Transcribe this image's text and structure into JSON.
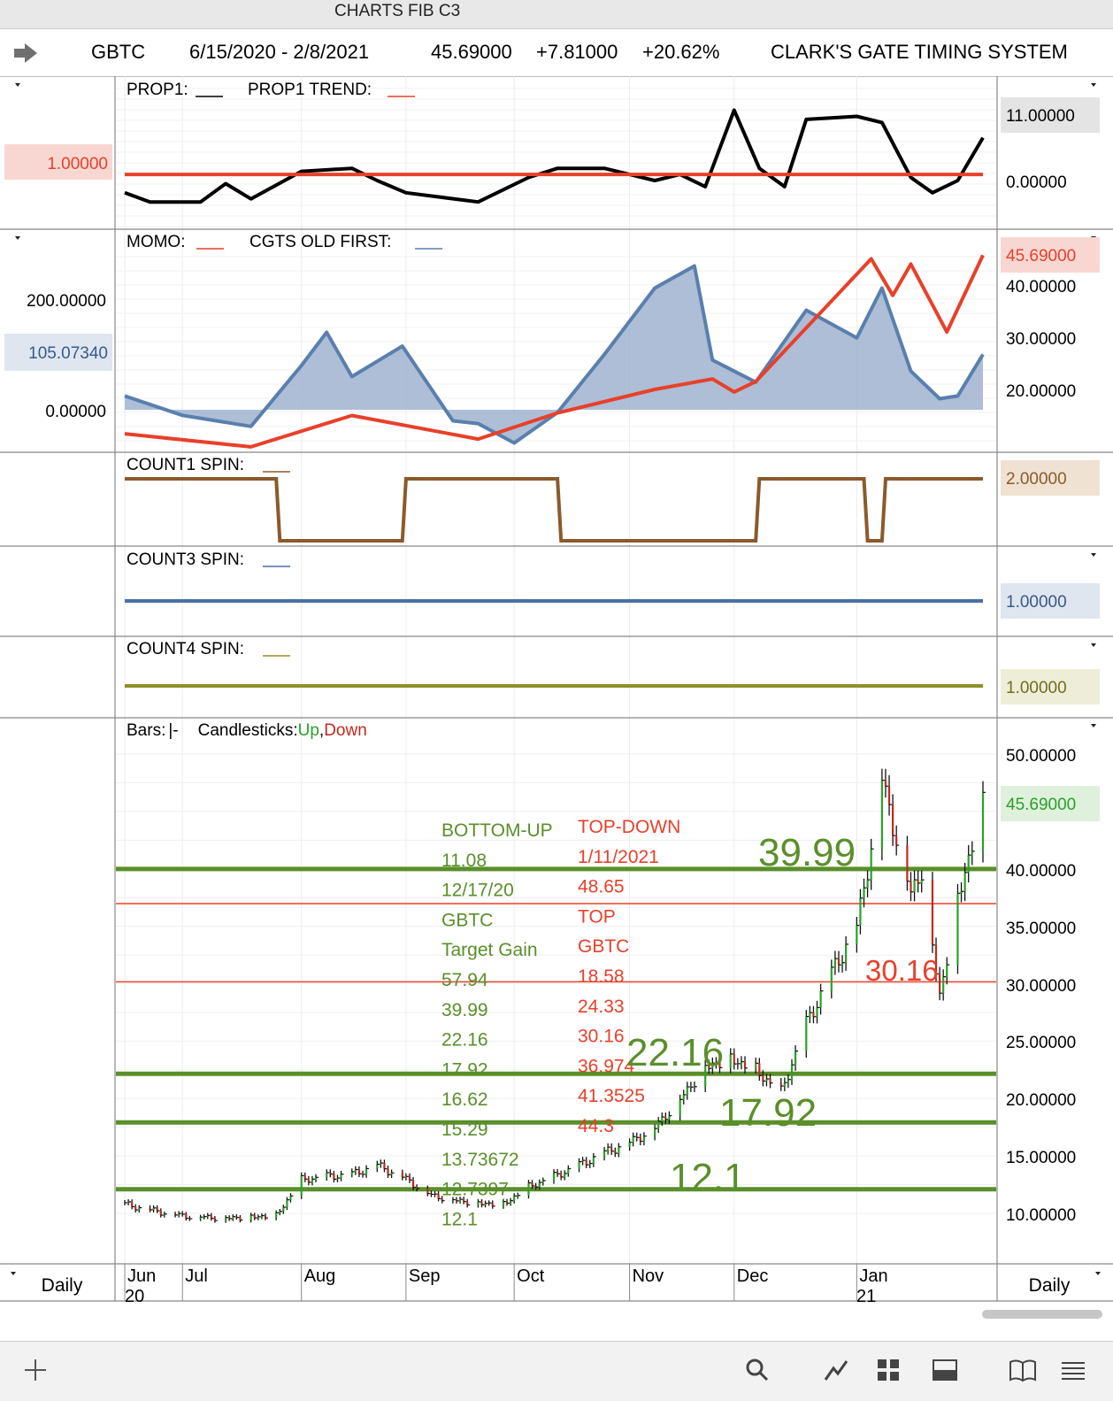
{
  "window": {
    "title": "CHARTS FIB C3"
  },
  "header": {
    "symbol": "GBTC",
    "date_range": "6/15/2020 - 2/8/2021",
    "last_price": "45.69000",
    "change": "+7.81000",
    "change_pct": "+20.62%",
    "system": "CLARK'S GATE TIMING SYSTEM"
  },
  "panels": {
    "prop": {
      "legend1": "PROP1:",
      "legend2": "PROP1 TREND:",
      "left_value": "1.00000",
      "right_ticks": [
        "11.00000",
        "0.00000"
      ]
    },
    "momo": {
      "legend1": "MOMO:",
      "legend2": "CGTS OLD FIRST:",
      "left_ticks": [
        "200.00000",
        "0.00000"
      ],
      "left_value": "105.07340",
      "right_value": "45.69000",
      "right_ticks": [
        "40.00000",
        "30.00000",
        "20.00000"
      ]
    },
    "count1": {
      "legend": "COUNT1 SPIN:",
      "right_value": "2.00000"
    },
    "count3": {
      "legend": "COUNT3 SPIN:",
      "right_value": "1.00000"
    },
    "count4": {
      "legend": "COUNT4 SPIN:",
      "right_value": "1.00000"
    },
    "price": {
      "legend_bars": "Bars:",
      "legend_bars_sym": "|-",
      "legend_candles": "Candlesticks:",
      "legend_up": "Up",
      "legend_comma": ",",
      "legend_down": "Down",
      "right_value": "45.69000",
      "right_ticks": [
        "50.00000",
        "40.00000",
        "35.00000",
        "30.00000",
        "25.00000",
        "20.00000",
        "15.00000",
        "10.00000"
      ]
    }
  },
  "colors": {
    "prop1": "#000000",
    "trend": "#e8402a",
    "momo": "#e8402a",
    "cgts": "#5a7fae",
    "count1": "#8b5a2b",
    "count3": "#4a6fa5",
    "count4": "#8f8f2a",
    "fib_green": "#5a8f2a",
    "fib_red": "#e8402a",
    "up": "#2aa02a",
    "down": "#c0281e"
  },
  "fib": {
    "bottom_up": [
      "BOTTOM-UP",
      "11.08",
      "12/17/20",
      "GBTC",
      "Target Gain",
      "57.94",
      "39.99",
      "22.16",
      "17.92",
      "16.62",
      "15.29",
      "13.73672",
      "12.7397",
      "12.1"
    ],
    "top_down": [
      "TOP-DOWN",
      "1/11/2021",
      "48.65",
      "TOP",
      "GBTC",
      "18.58",
      "24.33",
      "30.16",
      "36.974",
      "41.3525",
      "44.3"
    ],
    "big_labels": [
      "39.99",
      "22.16",
      "17.92",
      "12.1",
      "30.16"
    ]
  },
  "x_axis": {
    "months": [
      "Jun",
      "Jul",
      "Aug",
      "Sep",
      "Oct",
      "Nov",
      "Dec",
      "Jan"
    ],
    "years": [
      "20",
      "21"
    ],
    "left_label": "Daily",
    "right_label": "Daily"
  },
  "chart_data": [
    {
      "type": "line",
      "title": "PROP1",
      "series": [
        {
          "name": "PROP1",
          "x": [
            "6/15/2020",
            "6/22/2020",
            "7/6/2020",
            "7/13/2020",
            "7/20/2020",
            "8/3/2020",
            "8/17/2020",
            "8/24/2020",
            "9/1/2020",
            "9/21/2020",
            "10/5/2020",
            "10/13/2020",
            "10/26/2020",
            "11/9/2020",
            "11/16/2020",
            "11/23/2020",
            "12/1/2020",
            "12/8/2020",
            "12/15/2020",
            "12/21/2020",
            "1/4/2021",
            "1/11/2021",
            "1/19/2021",
            "1/25/2021",
            "2/1/2021",
            "2/8/2021"
          ],
          "values": [
            -2.0,
            -3.5,
            -3.5,
            -0.5,
            -3.0,
            1.5,
            2.0,
            0.0,
            -2.0,
            -3.5,
            0.5,
            2.0,
            2.0,
            0.0,
            1.0,
            -1.0,
            11.5,
            2.0,
            -1.0,
            10.0,
            10.5,
            9.5,
            0.5,
            -2.0,
            0.0,
            7.0
          ]
        },
        {
          "name": "PROP1 TREND",
          "x": [
            "6/15/2020",
            "2/8/2021"
          ],
          "values": [
            1.0,
            1.0
          ]
        }
      ]
    },
    {
      "type": "area",
      "title": "MOMO / CGTS OLD FIRST",
      "series": [
        {
          "name": "CGTS OLD FIRST",
          "x": [
            "6/15/2020",
            "7/1/2020",
            "7/20/2020",
            "8/3/2020",
            "8/10/2020",
            "8/17/2020",
            "8/31/2020",
            "9/14/2020",
            "9/21/2020",
            "10/1/2020",
            "10/13/2020",
            "10/26/2020",
            "11/9/2020",
            "11/20/2020",
            "11/25/2020",
            "12/7/2020",
            "12/21/2020",
            "1/4/2021",
            "1/11/2021",
            "1/19/2021",
            "1/27/2021",
            "2/1/2021",
            "2/8/2021"
          ],
          "values": [
            25,
            -10,
            -30,
            80,
            140,
            60,
            115,
            -20,
            -25,
            -60,
            -5,
            100,
            220,
            260,
            90,
            50,
            180,
            130,
            220,
            70,
            20,
            25,
            100
          ]
        },
        {
          "name": "MOMO",
          "x": [
            "6/15/2020",
            "7/20/2020",
            "8/17/2020",
            "9/21/2020",
            "10/13/2020",
            "11/9/2020",
            "11/25/2020",
            "12/1/2020",
            "12/7/2020",
            "1/8/2021",
            "1/14/2021",
            "1/19/2021",
            "1/29/2021",
            "2/8/2021"
          ],
          "values": [
            11.5,
            9.0,
            15.0,
            10.5,
            15.5,
            20.0,
            22.0,
            19.5,
            21.5,
            45.0,
            38.0,
            44.0,
            31.0,
            45.69
          ]
        }
      ]
    },
    {
      "type": "line",
      "title": "COUNT1 SPIN",
      "series": [
        {
          "name": "COUNT1 SPIN",
          "x": [
            "6/15/2020",
            "7/27/2020",
            "7/28/2020",
            "8/31/2020",
            "9/1/2020",
            "10/13/2020",
            "10/14/2020",
            "12/7/2020",
            "12/8/2020",
            "1/6/2021",
            "1/7/2021",
            "1/11/2021",
            "1/12/2021",
            "2/8/2021"
          ],
          "values": [
            2,
            2,
            1,
            1,
            2,
            2,
            1,
            1,
            2,
            2,
            1,
            1,
            2,
            2
          ]
        }
      ]
    },
    {
      "type": "line",
      "title": "COUNT3 SPIN",
      "series": [
        {
          "name": "COUNT3 SPIN",
          "x": [
            "6/15/2020",
            "2/8/2021"
          ],
          "values": [
            1,
            1
          ]
        }
      ]
    },
    {
      "type": "line",
      "title": "COUNT4 SPIN",
      "series": [
        {
          "name": "COUNT4 SPIN",
          "x": [
            "6/15/2020",
            "2/8/2021"
          ],
          "values": [
            1,
            1
          ]
        }
      ]
    },
    {
      "type": "bar",
      "title": "GBTC Daily Bars",
      "ylim": [
        6,
        55
      ],
      "hlines": [
        {
          "value": 39.99,
          "color": "green"
        },
        {
          "value": 36.974,
          "color": "red"
        },
        {
          "value": 30.16,
          "color": "red"
        },
        {
          "value": 22.16,
          "color": "green"
        },
        {
          "value": 17.92,
          "color": "green"
        },
        {
          "value": 12.1,
          "color": "green"
        }
      ],
      "dates": [
        "6/15/2020",
        "6/22/2020",
        "7/1/2020",
        "7/13/2020",
        "7/27/2020",
        "8/3/2020",
        "8/10/2020",
        "8/17/2020",
        "8/24/2020",
        "8/31/2020",
        "9/8/2020",
        "9/14/2020",
        "9/21/2020",
        "9/28/2020",
        "10/5/2020",
        "10/12/2020",
        "10/19/2020",
        "10/26/2020",
        "11/2/2020",
        "11/9/2020",
        "11/16/2020",
        "11/23/2020",
        "11/30/2020",
        "12/7/2020",
        "12/14/2020",
        "12/21/2020",
        "12/28/2020",
        "1/4/2021",
        "1/8/2021",
        "1/11/2021",
        "1/14/2021",
        "1/19/2021",
        "1/22/2021",
        "1/27/2021",
        "2/1/2021",
        "2/8/2021"
      ],
      "values": [
        10.8,
        10.3,
        9.8,
        9.6,
        9.8,
        12.9,
        13.2,
        13.4,
        14.2,
        13.2,
        11.6,
        11.2,
        10.9,
        10.8,
        12.3,
        13.2,
        14.2,
        15.3,
        16.2,
        17.5,
        20.0,
        22.8,
        23.5,
        22.5,
        20.5,
        26.5,
        31.0,
        35.0,
        42.0,
        48.0,
        44.0,
        38.0,
        40.0,
        29.0,
        37.5,
        45.69
      ]
    }
  ]
}
